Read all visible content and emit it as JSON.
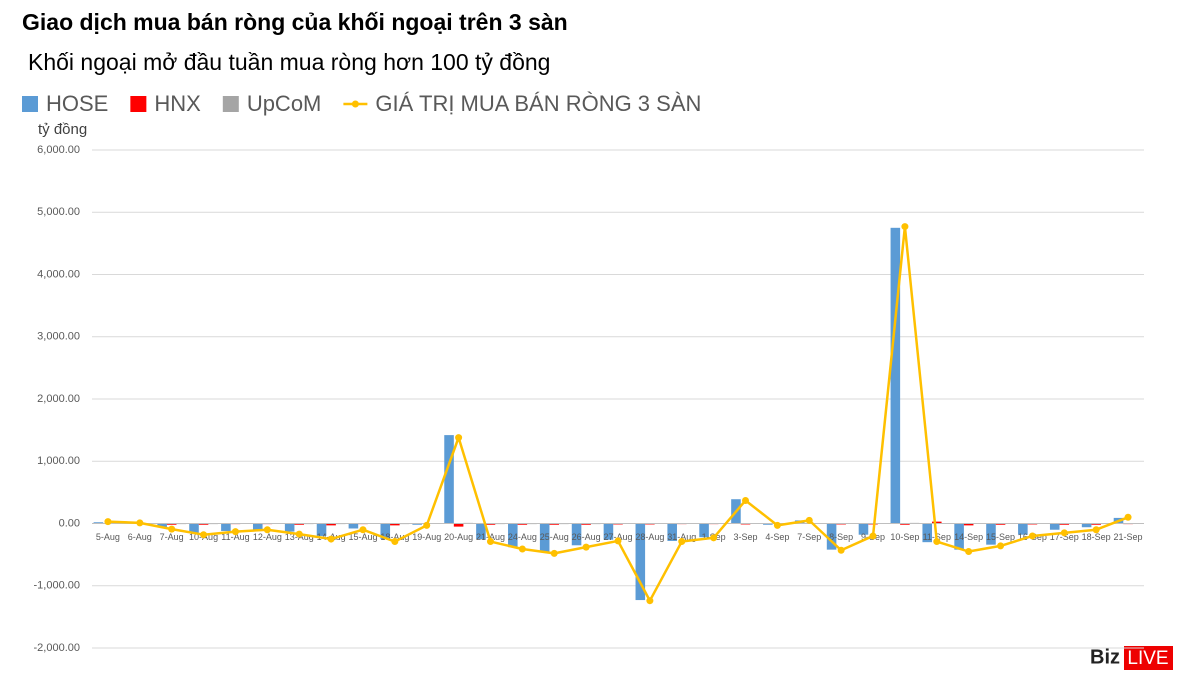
{
  "chart_data": {
    "type": "bar",
    "title": "Giao dịch mua bán ròng của khối ngoại trên 3 sàn",
    "subtitle": "Khối ngoại mở đầu tuần mua ròng hơn 100 tỷ đồng",
    "y_axis_label": "tỷ đồng",
    "logo": {
      "left": "Biz",
      "right": "LIVE"
    },
    "categories": [
      "5-Aug",
      "6-Aug",
      "7-Aug",
      "10-Aug",
      "11-Aug",
      "12-Aug",
      "13-Aug",
      "14-Aug",
      "15-Aug",
      "18-Aug",
      "19-Aug",
      "20-Aug",
      "21-Aug",
      "24-Aug",
      "25-Aug",
      "26-Aug",
      "27-Aug",
      "28-Aug",
      "31-Aug",
      "1-Sep",
      "3-Sep",
      "4-Sep",
      "7-Sep",
      "8-Sep",
      "9-Sep",
      "10-Sep",
      "11-Sep",
      "14-Sep",
      "15-Sep",
      "16-Sep",
      "17-Sep",
      "18-Sep",
      "21-Sep"
    ],
    "series": [
      {
        "name": "HOSE",
        "type": "bar",
        "color": "#5b9bd5",
        "values": [
          20,
          10,
          -60,
          -150,
          -120,
          -100,
          -130,
          -200,
          -80,
          -250,
          -20,
          1420,
          -250,
          -380,
          -450,
          -350,
          -260,
          -1230,
          -280,
          -220,
          390,
          -20,
          50,
          -420,
          -180,
          4750,
          -300,
          -420,
          -340,
          -180,
          -100,
          -60,
          90
        ]
      },
      {
        "name": "HNX",
        "type": "bar",
        "color": "#ff0000",
        "values": [
          5,
          -5,
          -20,
          -20,
          -10,
          -10,
          -20,
          -30,
          -10,
          -30,
          -5,
          -50,
          -20,
          -20,
          -20,
          -20,
          -15,
          -15,
          -10,
          -10,
          -15,
          -5,
          -5,
          -15,
          -15,
          -20,
          30,
          -30,
          -20,
          -15,
          -20,
          -20,
          -10
        ]
      },
      {
        "name": "UpCoM",
        "type": "bar",
        "color": "#a5a5a5",
        "values": [
          5,
          5,
          -10,
          -10,
          -5,
          -5,
          -10,
          -10,
          -5,
          -10,
          -5,
          10,
          -10,
          -10,
          -10,
          -10,
          -5,
          -5,
          -5,
          -5,
          5,
          -5,
          5,
          -5,
          -5,
          10,
          -5,
          -5,
          -5,
          -5,
          -5,
          -5,
          5
        ]
      },
      {
        "name": "GIÁ TRỊ MUA BÁN RÒNG 3 SÀN",
        "type": "line",
        "color": "#ffc000",
        "values": [
          30,
          10,
          -90,
          -180,
          -130,
          -100,
          -170,
          -250,
          -100,
          -290,
          -30,
          1380,
          -290,
          -410,
          -480,
          -380,
          -280,
          -1240,
          -290,
          -230,
          370,
          -30,
          50,
          -430,
          -200,
          4770,
          -290,
          -450,
          -360,
          -200,
          -150,
          -100,
          100
        ]
      }
    ],
    "ylim": [
      -2000,
      6000
    ],
    "yticks": [
      {
        "value": -2000,
        "label": "-2,000.00"
      },
      {
        "value": -1000,
        "label": "-1,000.00"
      },
      {
        "value": 0,
        "label": "0.00"
      },
      {
        "value": 1000,
        "label": "1,000.00"
      },
      {
        "value": 2000,
        "label": "2,000.00"
      },
      {
        "value": 3000,
        "label": "3,000.00"
      },
      {
        "value": 4000,
        "label": "4,000.00"
      },
      {
        "value": 5000,
        "label": "5,000.00"
      },
      {
        "value": 6000,
        "label": "6,000.00"
      }
    ],
    "grid": true
  }
}
